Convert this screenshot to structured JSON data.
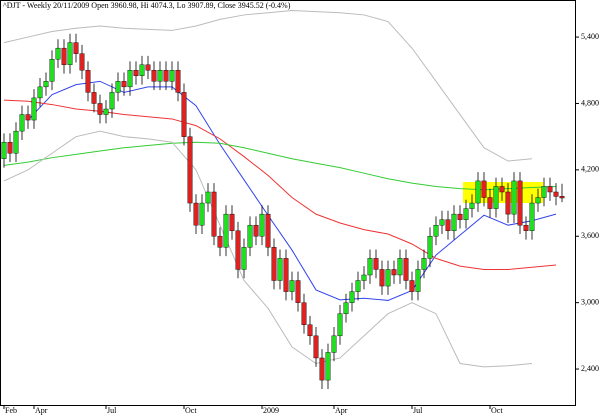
{
  "chart_data": {
    "type": "candlestick",
    "title": "^DJT - Weekly 20/11/2009 Open 3960.98, Hi 4074.3, Lo 3907.89, Close 3945.52 (-0.4%)",
    "categories": [
      "Feb",
      null,
      null,
      null,
      null,
      "Apr",
      null,
      null,
      null,
      null,
      null,
      null,
      null,
      null,
      null,
      null,
      null,
      "Jul",
      null,
      null,
      null,
      null,
      null,
      null,
      null,
      null,
      null,
      null,
      null,
      null,
      "Oct",
      null,
      null,
      null,
      null,
      null,
      null,
      null,
      null,
      null,
      null,
      null,
      null,
      "2009",
      null,
      null,
      null,
      null,
      null,
      null,
      null,
      null,
      null,
      null,
      null,
      "Apr",
      null,
      null,
      null,
      null,
      null,
      null,
      null,
      null,
      null,
      null,
      null,
      null,
      "Jul",
      null,
      null,
      null,
      null,
      null,
      null,
      null,
      null,
      null,
      null,
      null,
      null,
      "Oct",
      null,
      null,
      null,
      null,
      null,
      null,
      null,
      null,
      null,
      null,
      null,
      null
    ],
    "open": [
      4300,
      4450,
      4350,
      4550,
      4700,
      4650,
      4850,
      4950,
      5000,
      5200,
      5300,
      5150,
      5350,
      5250,
      5100,
      4900,
      4800,
      4700,
      4750,
      4900,
      5000,
      4950,
      5100,
      5050,
      5150,
      5100,
      5000,
      5100,
      5000,
      5100,
      4900,
      4500,
      3900,
      3700,
      3900,
      4000,
      3600,
      3500,
      3800,
      3650,
      3300,
      3500,
      3700,
      3600,
      3800,
      3500,
      3200,
      3400,
      3100,
      3200,
      3000,
      2800,
      2700,
      2500,
      2300,
      2550,
      2700,
      2900,
      3000,
      3100,
      3200,
      3250,
      3400,
      3300,
      3150,
      3300,
      3250,
      3400,
      3200,
      3100,
      3300,
      3400,
      3600,
      3700,
      3750,
      3650,
      3800,
      3750,
      3850,
      3900,
      4100,
      3950,
      3850,
      4050,
      4000,
      3800,
      4100,
      3700,
      3650,
      3900,
      3950,
      4050,
      4000,
      3960.98
    ],
    "high": [
      4530,
      4530,
      4630,
      4780,
      4780,
      4930,
      5030,
      5080,
      5280,
      5380,
      5380,
      5430,
      5430,
      5330,
      5180,
      4980,
      4880,
      4830,
      4980,
      5080,
      5080,
      5180,
      5180,
      5230,
      5230,
      5180,
      5180,
      5180,
      5180,
      5180,
      4980,
      4580,
      3980,
      3980,
      4080,
      4080,
      3680,
      3880,
      3880,
      3730,
      3580,
      3780,
      3780,
      3880,
      3880,
      3580,
      3480,
      3480,
      3280,
      3280,
      3080,
      2880,
      2780,
      2580,
      2630,
      2780,
      2980,
      3080,
      3180,
      3280,
      3330,
      3480,
      3480,
      3380,
      3380,
      3380,
      3480,
      3480,
      3280,
      3380,
      3480,
      3680,
      3780,
      3830,
      3830,
      3880,
      3880,
      3930,
      3980,
      4180,
      4180,
      4030,
      4130,
      4130,
      4080,
      4180,
      4180,
      3780,
      3980,
      4030,
      4130,
      4130,
      4080,
      4074.3
    ],
    "low": [
      4220,
      4270,
      4270,
      4470,
      4570,
      4570,
      4770,
      4870,
      4920,
      5120,
      5070,
      5070,
      5170,
      5020,
      4820,
      4720,
      4620,
      4620,
      4670,
      4820,
      4870,
      4870,
      4970,
      4970,
      5020,
      4920,
      4920,
      4920,
      4920,
      4820,
      4420,
      3820,
      3620,
      3620,
      3820,
      3520,
      3420,
      3420,
      3570,
      3220,
      3220,
      3420,
      3520,
      3520,
      3420,
      3120,
      3120,
      3020,
      3020,
      2920,
      2720,
      2620,
      2420,
      2220,
      2220,
      2470,
      2620,
      2820,
      2920,
      3020,
      3120,
      3170,
      3220,
      3070,
      3070,
      3170,
      3170,
      3120,
      3020,
      3020,
      3220,
      3320,
      3520,
      3620,
      3570,
      3570,
      3670,
      3670,
      3770,
      3820,
      3870,
      3770,
      3770,
      3920,
      3720,
      3720,
      3620,
      3570,
      3570,
      3820,
      3870,
      3920,
      3880,
      3907.89
    ],
    "close": [
      4450,
      4350,
      4550,
      4700,
      4650,
      4850,
      4950,
      5000,
      5200,
      5300,
      5150,
      5350,
      5250,
      5100,
      4900,
      4800,
      4700,
      4750,
      4900,
      5000,
      4950,
      5100,
      5050,
      5150,
      5100,
      5000,
      5100,
      5000,
      5100,
      4900,
      4500,
      3900,
      3700,
      3900,
      4000,
      3600,
      3500,
      3800,
      3650,
      3300,
      3500,
      3700,
      3600,
      3800,
      3500,
      3200,
      3400,
      3100,
      3200,
      3000,
      2800,
      2700,
      2500,
      2300,
      2550,
      2700,
      2900,
      3000,
      3100,
      3200,
      3250,
      3400,
      3300,
      3150,
      3300,
      3250,
      3400,
      3200,
      3100,
      3300,
      3400,
      3600,
      3700,
      3750,
      3650,
      3800,
      3750,
      3850,
      3900,
      4100,
      3950,
      3850,
      4050,
      4000,
      3800,
      4100,
      3700,
      3650,
      3900,
      3950,
      4050,
      4000,
      3960,
      3945.52
    ],
    "up_color": "#22dd22",
    "down_color": "#dd2222",
    "overlay_x": [
      0,
      4,
      8,
      12,
      16,
      20,
      24,
      28,
      32,
      36,
      40,
      44,
      48,
      52,
      56,
      60,
      64,
      68,
      72,
      76,
      80,
      84,
      88,
      92
    ],
    "overlays": [
      {
        "color": "#3344ee",
        "values": [
          null,
          4650,
          4880,
          4970,
          5000,
          4900,
          4950,
          4950,
          4780,
          4430,
          4110,
          3790,
          3475,
          3115,
          3025,
          3040,
          3020,
          3110,
          3430,
          3610,
          3790,
          3700,
          3740,
          3800
        ]
      },
      {
        "color": "#ee3333",
        "values": [
          4830,
          4820,
          4790,
          4750,
          4730,
          4700,
          4680,
          4660,
          4600,
          4480,
          4320,
          4150,
          3950,
          3800,
          3720,
          3660,
          3620,
          3530,
          3400,
          3330,
          3300,
          3300,
          3320,
          3340
        ]
      },
      {
        "color": "#33cc33",
        "values": [
          4240,
          4270,
          4310,
          4340,
          4370,
          4400,
          4420,
          4440,
          4450,
          4440,
          4400,
          4350,
          4300,
          4260,
          4220,
          4170,
          4120,
          4080,
          4050,
          4030,
          4020,
          4030,
          4040,
          4050
        ]
      },
      {
        "color": "#bbbbbb",
        "values": [
          5350,
          5400,
          5450,
          5480,
          5500,
          5480,
          5470,
          5460,
          5500,
          5560,
          5600,
          5620,
          5640,
          5630,
          5620,
          5600,
          5540,
          5300,
          5000,
          4700,
          4400,
          4280,
          4300,
          null
        ]
      },
      {
        "color": "#bbbbbb",
        "values": [
          4100,
          4200,
          4350,
          4500,
          4550,
          4500,
          4480,
          4450,
          4200,
          3700,
          3200,
          2950,
          2600,
          2450,
          2500,
          2700,
          2900,
          3000,
          2900,
          2450,
          2420,
          2430,
          2450,
          null
        ]
      }
    ],
    "ylim": [
      2075,
      5735
    ],
    "yticks": [
      {
        "value": 2400,
        "label": "2,400"
      },
      {
        "value": 3000,
        "label": "3,000"
      },
      {
        "value": 3600,
        "label": "3,600"
      },
      {
        "value": 4200,
        "label": "4,200"
      },
      {
        "value": 4800,
        "label": "4,800"
      },
      {
        "value": 5400,
        "label": "5,400"
      }
    ]
  }
}
